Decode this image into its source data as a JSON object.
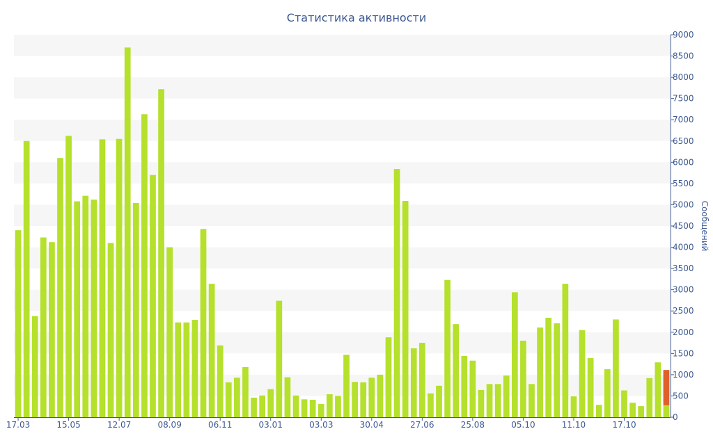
{
  "chart_data": {
    "type": "bar",
    "title": "Статистика активности",
    "ylabel": "Сообщений",
    "ylim": [
      0,
      9000
    ],
    "y_ticks": [
      0,
      500,
      1000,
      1500,
      2000,
      2500,
      3000,
      3500,
      4000,
      4500,
      5000,
      5500,
      6000,
      6500,
      7000,
      7500,
      8000,
      8500,
      9000
    ],
    "x_tick_labels": [
      {
        "index": 0,
        "label": "17.03"
      },
      {
        "index": 6,
        "label": "15.05"
      },
      {
        "index": 12,
        "label": "12.07"
      },
      {
        "index": 18,
        "label": "08.09"
      },
      {
        "index": 24,
        "label": "06.11"
      },
      {
        "index": 30,
        "label": "03.01"
      },
      {
        "index": 36,
        "label": "03.03"
      },
      {
        "index": 42,
        "label": "30.04"
      },
      {
        "index": 48,
        "label": "27.06"
      },
      {
        "index": 54,
        "label": "25.08"
      },
      {
        "index": 60,
        "label": "05.10"
      },
      {
        "index": 66,
        "label": "11.10"
      },
      {
        "index": 72,
        "label": "17.10"
      }
    ],
    "grid": "horizontal bands",
    "y_axis_position": "right",
    "colors": {
      "bar": "#b5e02b",
      "highlight": "#e0602a",
      "text": "#3e5a91",
      "band": "#f6f6f6"
    },
    "values": [
      4400,
      6500,
      2380,
      4230,
      4120,
      6100,
      6620,
      5080,
      5210,
      5120,
      6540,
      4100,
      6550,
      8700,
      5040,
      7130,
      5700,
      7720,
      4000,
      2230,
      2230,
      2290,
      4430,
      3140,
      1690,
      820,
      930,
      1180,
      460,
      510,
      660,
      2740,
      940,
      510,
      420,
      410,
      310,
      540,
      500,
      1470,
      830,
      820,
      930,
      1000,
      1880,
      5840,
      5090,
      1620,
      1750,
      560,
      740,
      3230,
      2190,
      1440,
      1330,
      640,
      780,
      780,
      980,
      2940,
      1800,
      780,
      2110,
      2340,
      2210,
      3140,
      490,
      2050,
      1390,
      290,
      1130,
      2300,
      630,
      340,
      260,
      920,
      1290,
      1110
    ],
    "last_bar_split": {
      "lower": 280,
      "upper": 830
    }
  }
}
